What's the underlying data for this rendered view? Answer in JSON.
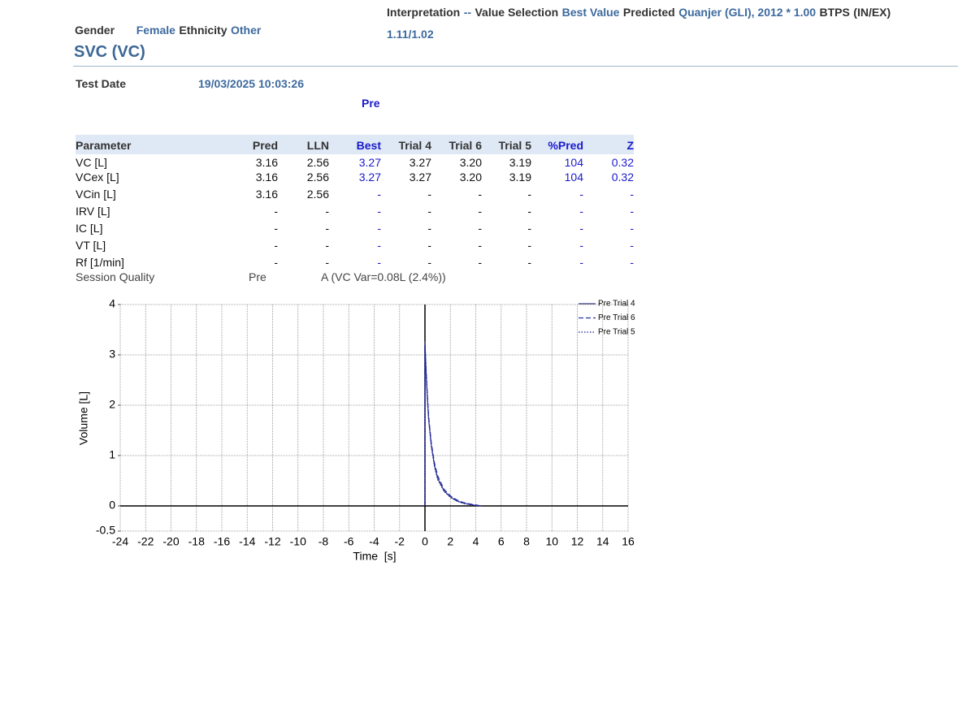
{
  "header": {
    "gender_label": "Gender",
    "gender": "Female",
    "ethnicity_label": "Ethnicity",
    "ethnicity": "Other",
    "interpretation_label": "Interpretation",
    "interpretation": "--",
    "value_selection_label": "Value Selection",
    "value_selection": "Best Value",
    "predicted_label": "Predicted",
    "predicted": "Quanjer (GLI), 2012 * 1.00",
    "btps_label": "BTPS",
    "in_ex_label": "(IN/EX)",
    "in_ex": "1.11/1.02"
  },
  "section_title": "SVC (VC)",
  "test_date_label": "Test Date",
  "test_date": "19/03/2025 10:03:26",
  "phase": "Pre",
  "table": {
    "columns": [
      "Parameter",
      "Pred",
      "LLN",
      "Best",
      "Trial 4",
      "Trial 6",
      "Trial 5",
      "%Pred",
      "Z"
    ],
    "rows": [
      [
        "VC [L]",
        "3.16",
        "2.56",
        "3.27",
        "3.27",
        "3.20",
        "3.19",
        "104",
        "0.32"
      ],
      [
        "VCex [L]",
        "3.16",
        "2.56",
        "3.27",
        "3.27",
        "3.20",
        "3.19",
        "104",
        "0.32"
      ],
      [
        "VCin [L]",
        "3.16",
        "2.56",
        "-",
        "-",
        "-",
        "-",
        "-",
        "-"
      ],
      [
        "IRV [L]",
        "-",
        "-",
        "-",
        "-",
        "-",
        "-",
        "-",
        "-"
      ],
      [
        "IC [L]",
        "-",
        "-",
        "-",
        "-",
        "-",
        "-",
        "-",
        "-"
      ],
      [
        "VT [L]",
        "-",
        "-",
        "-",
        "-",
        "-",
        "-",
        "-",
        "-"
      ],
      [
        "Rf [1/min]",
        "-",
        "-",
        "-",
        "-",
        "-",
        "-",
        "-",
        "-"
      ]
    ]
  },
  "session_quality": {
    "label": "Session Quality",
    "phase": "Pre",
    "grade": "A (VC Var=0.08L (2.4%))"
  },
  "chart_data": {
    "type": "line",
    "xlabel": "Time  [s]",
    "ylabel": "Volume [L]",
    "x": [
      0,
      0,
      0.1,
      0.2,
      0.3,
      0.5,
      0.75,
      1,
      1.5,
      2,
      2.5,
      3,
      3.5,
      4,
      4.5
    ],
    "series": [
      {
        "name": "Pre Trial 4",
        "color": "#3a3a80",
        "dash": "solid",
        "values": [
          0,
          3.27,
          2.6,
          2.1,
          1.7,
          1.2,
          0.8,
          0.55,
          0.3,
          0.18,
          0.1,
          0.06,
          0.03,
          0.01,
          0
        ]
      },
      {
        "name": "Pre Trial 6",
        "color": "#2233aa",
        "dash": "dashed",
        "values": [
          0,
          3.2,
          2.65,
          2.15,
          1.75,
          1.25,
          0.85,
          0.6,
          0.33,
          0.2,
          0.12,
          0.07,
          0.04,
          0.02,
          0
        ]
      },
      {
        "name": "Pre Trial 5",
        "color": "#1a1a99",
        "dash": "dotted",
        "values": [
          0,
          3.19,
          2.55,
          2.05,
          1.68,
          1.18,
          0.78,
          0.52,
          0.29,
          0.17,
          0.1,
          0.05,
          0.03,
          0.01,
          0
        ]
      }
    ],
    "xlim": [
      -24,
      16
    ],
    "xticks": [
      -24,
      -22,
      -20,
      -18,
      -16,
      -14,
      -12,
      -10,
      -8,
      -6,
      -4,
      -2,
      0,
      2,
      4,
      6,
      8,
      10,
      12,
      14,
      16
    ],
    "ylim": [
      -0.5,
      4
    ],
    "yticks": [
      -0.5,
      0,
      1,
      2,
      3,
      4
    ],
    "grid": true,
    "legend": "top-right"
  }
}
